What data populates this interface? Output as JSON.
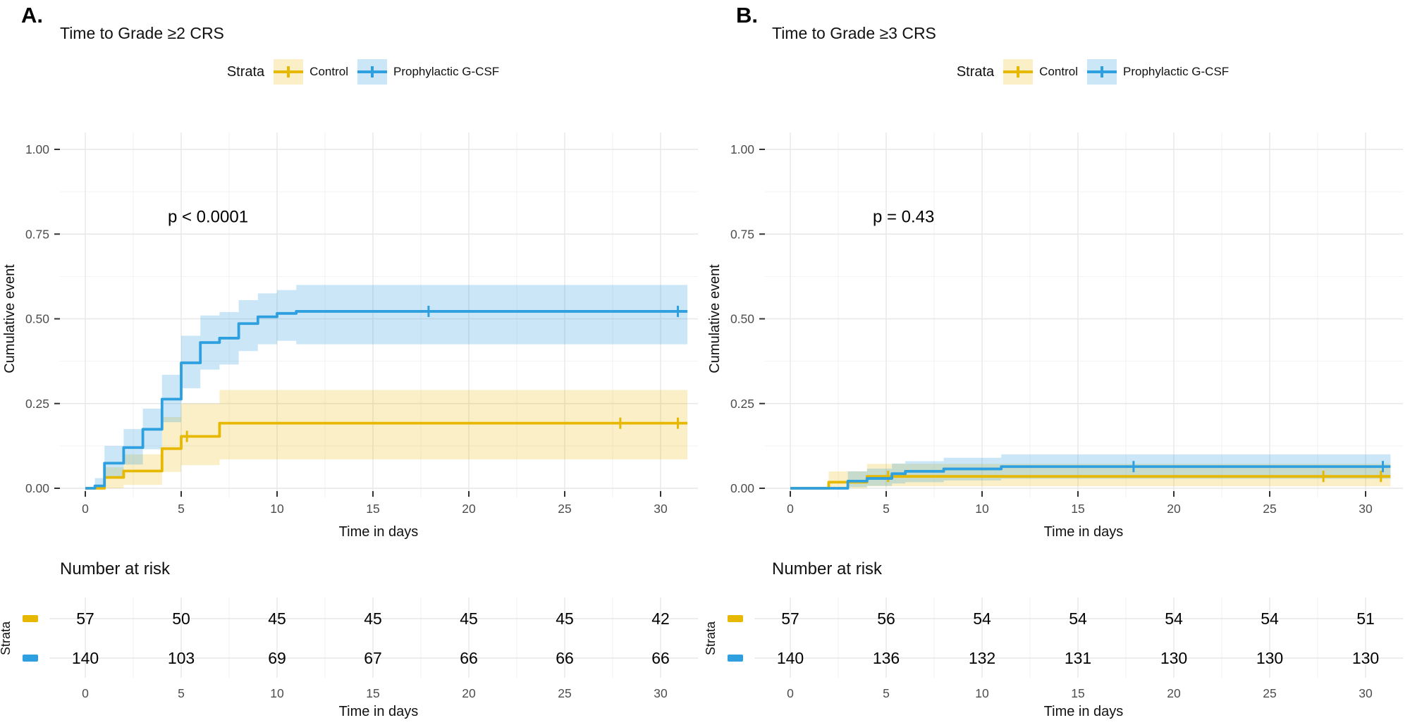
{
  "figure": {
    "legend_title": "Strata",
    "risk_header": "Number at risk",
    "strata_axis_label": "Strata",
    "series": [
      {
        "id": "control",
        "label": "Control",
        "color": "#E7B800",
        "band_color": "rgba(231,184,0,0.22)"
      },
      {
        "id": "gcsf",
        "label": "Prophylactic G-CSF",
        "color": "#2E9FDF",
        "band_color": "rgba(46,159,223,0.25)"
      }
    ],
    "grid": {
      "major_color": "#E7E7E7",
      "minor_color": "#F2F2F2",
      "tick_color": "#333333",
      "tick_text_color": "#4d4d4d"
    }
  },
  "chart_data": [
    {
      "type": "line",
      "subtype": "cumulative-incidence-step",
      "panel_letter": "A.",
      "title": "Time to Grade ≥2 CRS",
      "p_value": "p < 0.0001",
      "xlabel": "Time in days",
      "ylabel": "Cumulative event",
      "xlim": [
        -1.3,
        31.9
      ],
      "ylim": [
        0,
        1.05
      ],
      "x_ticks": [
        0,
        5,
        10,
        15,
        20,
        25,
        30
      ],
      "y_ticks": [
        0,
        0.25,
        0.5,
        0.75,
        1
      ],
      "y_tick_labels": [
        "0.00",
        "0.25",
        "0.50",
        "0.75",
        "1.00"
      ],
      "grid": "on",
      "legend_position": "top",
      "series": [
        {
          "name": "Control",
          "color": "#E7B800",
          "steps": [
            [
              0,
              0
            ],
            [
              1,
              0.032
            ],
            [
              2,
              0.051
            ],
            [
              4,
              0.117
            ],
            [
              5,
              0.153
            ],
            [
              7,
              0.192
            ],
            [
              31.4,
              0.192
            ]
          ],
          "ci_band": [
            [
              1,
              0,
              0.062
            ],
            [
              2,
              0.01,
              0.1
            ],
            [
              4,
              0.048,
              0.21
            ],
            [
              5,
              0.068,
              0.25
            ],
            [
              7,
              0.085,
              0.29
            ],
            [
              31.4,
              0.085,
              0.29
            ]
          ],
          "censor_marks": [
            [
              5.3,
              0.153
            ],
            [
              27.9,
              0.192
            ],
            [
              30.9,
              0.192
            ]
          ]
        },
        {
          "name": "Prophylactic G-CSF",
          "color": "#2E9FDF",
          "steps": [
            [
              0,
              0
            ],
            [
              0.5,
              0.007
            ],
            [
              1,
              0.074
            ],
            [
              2,
              0.12
            ],
            [
              3,
              0.174
            ],
            [
              4,
              0.263
            ],
            [
              5,
              0.37
            ],
            [
              6,
              0.43
            ],
            [
              7,
              0.443
            ],
            [
              8,
              0.486
            ],
            [
              9,
              0.506
            ],
            [
              10,
              0.516
            ],
            [
              11,
              0.522
            ],
            [
              31.4,
              0.522
            ]
          ],
          "ci_band": [
            [
              0.5,
              0,
              0.03
            ],
            [
              1,
              0.035,
              0.125
            ],
            [
              2,
              0.07,
              0.175
            ],
            [
              3,
              0.115,
              0.235
            ],
            [
              4,
              0.195,
              0.335
            ],
            [
              5,
              0.295,
              0.45
            ],
            [
              6,
              0.35,
              0.51
            ],
            [
              7,
              0.365,
              0.52
            ],
            [
              8,
              0.405,
              0.555
            ],
            [
              9,
              0.425,
              0.575
            ],
            [
              10,
              0.435,
              0.585
            ],
            [
              11,
              0.425,
              0.6
            ],
            [
              31.4,
              0.425,
              0.6
            ]
          ],
          "censor_marks": [
            [
              17.9,
              0.522
            ],
            [
              30.9,
              0.522
            ]
          ]
        }
      ],
      "risk_table": {
        "x": [
          0,
          5,
          10,
          15,
          20,
          25,
          30
        ],
        "rows": [
          {
            "name": "Control",
            "values": [
              "57",
              "50",
              "45",
              "45",
              "45",
              "45",
              "42"
            ]
          },
          {
            "name": "Prophylactic G-CSF",
            "values": [
              "140",
              "103",
              "69",
              "67",
              "66",
              "66",
              "66"
            ]
          }
        ]
      }
    },
    {
      "type": "line",
      "subtype": "cumulative-incidence-step",
      "panel_letter": "B.",
      "title": "Time to Grade ≥3 CRS",
      "p_value": "p = 0.43",
      "xlabel": "Time in days",
      "ylabel": "Cumulative event",
      "xlim": [
        -1.3,
        31.9
      ],
      "ylim": [
        0,
        1.05
      ],
      "x_ticks": [
        0,
        5,
        10,
        15,
        20,
        25,
        30
      ],
      "y_ticks": [
        0,
        0.25,
        0.5,
        0.75,
        1
      ],
      "y_tick_labels": [
        "0.00",
        "0.25",
        "0.50",
        "0.75",
        "1.00"
      ],
      "grid": "on",
      "legend_position": "top",
      "series": [
        {
          "name": "Control",
          "color": "#E7B800",
          "steps": [
            [
              0,
              0
            ],
            [
              2,
              0.018
            ],
            [
              4,
              0.035
            ],
            [
              31.3,
              0.035
            ]
          ],
          "ci_band": [
            [
              2,
              0,
              0.05
            ],
            [
              4,
              0.006,
              0.072
            ],
            [
              31.3,
              0.006,
              0.072
            ]
          ],
          "censor_marks": [
            [
              5.1,
              0.035
            ],
            [
              27.8,
              0.035
            ],
            [
              30.8,
              0.035
            ]
          ]
        },
        {
          "name": "Prophylactic G-CSF",
          "color": "#2E9FDF",
          "steps": [
            [
              0,
              0
            ],
            [
              3,
              0.021
            ],
            [
              4,
              0.029
            ],
            [
              5.3,
              0.043
            ],
            [
              6,
              0.05
            ],
            [
              8,
              0.057
            ],
            [
              11,
              0.064
            ],
            [
              31.3,
              0.064
            ]
          ],
          "ci_band": [
            [
              3,
              0.004,
              0.05
            ],
            [
              4,
              0.007,
              0.058
            ],
            [
              5.3,
              0.014,
              0.073
            ],
            [
              6,
              0.018,
              0.08
            ],
            [
              8,
              0.023,
              0.09
            ],
            [
              11,
              0.028,
              0.1
            ],
            [
              31.3,
              0.028,
              0.1
            ]
          ],
          "censor_marks": [
            [
              17.9,
              0.064
            ],
            [
              30.9,
              0.064
            ]
          ]
        }
      ],
      "risk_table": {
        "x": [
          0,
          5,
          10,
          15,
          20,
          25,
          30
        ],
        "rows": [
          {
            "name": "Control",
            "values": [
              "57",
              "56",
              "54",
              "54",
              "54",
              "54",
              "51"
            ]
          },
          {
            "name": "Prophylactic G-CSF",
            "values": [
              "140",
              "136",
              "132",
              "131",
              "130",
              "130",
              "130"
            ]
          }
        ]
      }
    }
  ]
}
